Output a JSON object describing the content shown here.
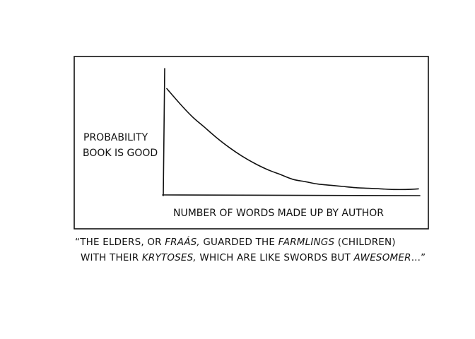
{
  "chart_data": {
    "type": "line",
    "title": "",
    "xlabel": "NUMBER OF WORDS MADE UP BY AUTHOR",
    "ylabel_lines": [
      "PROBABILITY",
      "BOOK IS GOOD"
    ],
    "xlim": [
      0,
      100
    ],
    "ylim": [
      0,
      100
    ],
    "grid": false,
    "legend": "none",
    "x": [
      0,
      5,
      10,
      15,
      20,
      25,
      30,
      35,
      40,
      45,
      50,
      55,
      60,
      65,
      70,
      75,
      80,
      85,
      90,
      95,
      100
    ],
    "series": [
      {
        "values": [
          88,
          76,
          65,
          56,
          47,
          39,
          32,
          26,
          21,
          17,
          13,
          11,
          9,
          8,
          7,
          6,
          5.5,
          5,
          4.5,
          4.5,
          5
        ]
      }
    ]
  },
  "caption": {
    "line1_a": "“The elders, or ",
    "line1_b": "fraás,",
    "line1_c": " guarded the ",
    "line1_d": "farmlings",
    "line1_e": " (children)",
    "line2_a": "with their ",
    "line2_b": "krytoses,",
    "line2_c": " which are like swords but ",
    "line2_d": "awesomer",
    "line2_e": "...”"
  },
  "colors": {
    "ink": "#111111",
    "background": "#ffffff"
  }
}
